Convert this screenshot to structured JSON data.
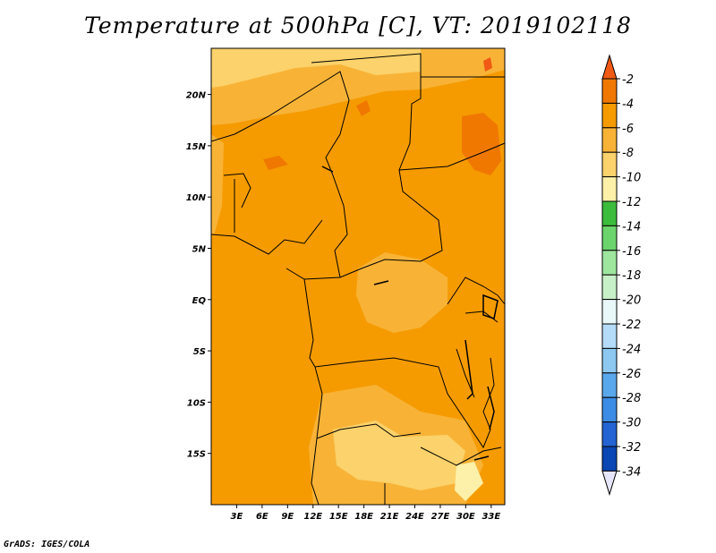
{
  "title": "Temperature at 500hPa [C], VT: 2019102118",
  "credit": "GrADS: IGES/COLA",
  "map": {
    "lon_range": [
      0,
      34.6
    ],
    "lat_range": [
      -20,
      24.5
    ],
    "lon_ticks": [
      "3E",
      "6E",
      "9E",
      "12E",
      "15E",
      "18E",
      "21E",
      "24E",
      "27E",
      "30E",
      "33E"
    ],
    "lat_ticks": [
      "20N",
      "15N",
      "10N",
      "5N",
      "EQ",
      "5S",
      "10S",
      "15S"
    ]
  },
  "colorbar": {
    "levels": [
      "-2",
      "-4",
      "-6",
      "-8",
      "-10",
      "-12",
      "-14",
      "-16",
      "-18",
      "-20",
      "-22",
      "-24",
      "-26",
      "-28",
      "-30",
      "-32",
      "-34"
    ],
    "colors": [
      "#f05a14",
      "#f07800",
      "#f59b00",
      "#f8b337",
      "#fbd26b",
      "#fdf0a8",
      "#3cbc3c",
      "#6cd46c",
      "#9ee69e",
      "#c8f0c8",
      "#e8f8f8",
      "#b4dcf8",
      "#8cc8f0",
      "#5aa8ec",
      "#3c8ce6",
      "#2364d2",
      "#0a46b4",
      "#00238c",
      "#e6e6fa"
    ]
  }
}
